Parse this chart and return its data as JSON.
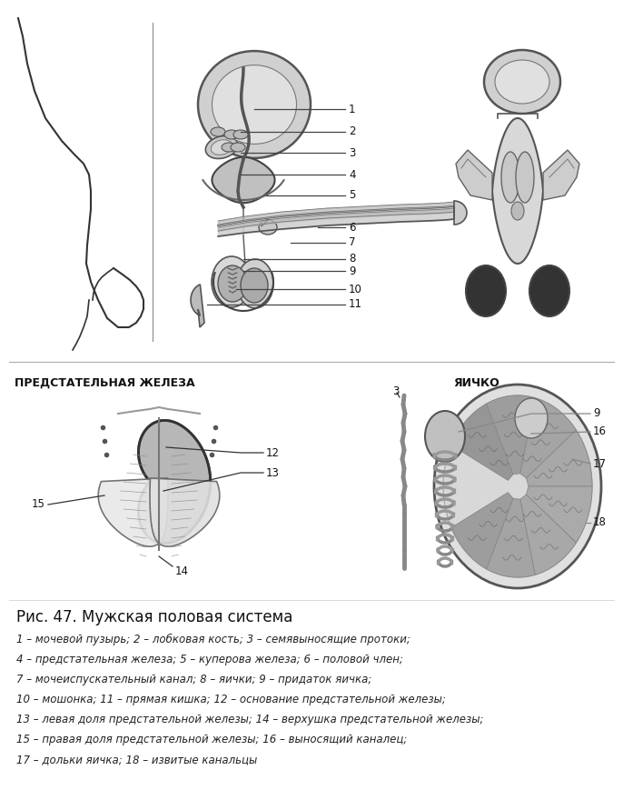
{
  "bg_color": "#ffffff",
  "title": "Рис. 47. Мужская половая система",
  "title_fontsize": 12,
  "label_prostate": "ПРЕДСТАТЕЛЬНАЯ ЖЕЛЕЗА",
  "label_testis": "ЯИЧКО",
  "caption_lines": [
    "1 – мочевой пузырь; 2 – лобковая кость; 3 – семявыносящие протоки;",
    "4 – предстательная железа; 5 – куперова железа; 6 – половой член;",
    "7 – мочеиспускательный канал; 8 – яички; 9 – придаток яичка;",
    "10 – мошонка; 11 – прямая кишка; 12 – основание предстательной железы;",
    "13 – левая доля предстательной железы; 14 – верхушка предстательной железы;",
    "15 – правая доля предстательной железы; 16 – выносящий каналец;",
    "17 – дольки яичка; 18 – извитые канальцы"
  ],
  "caption_fontsize": 8.5
}
